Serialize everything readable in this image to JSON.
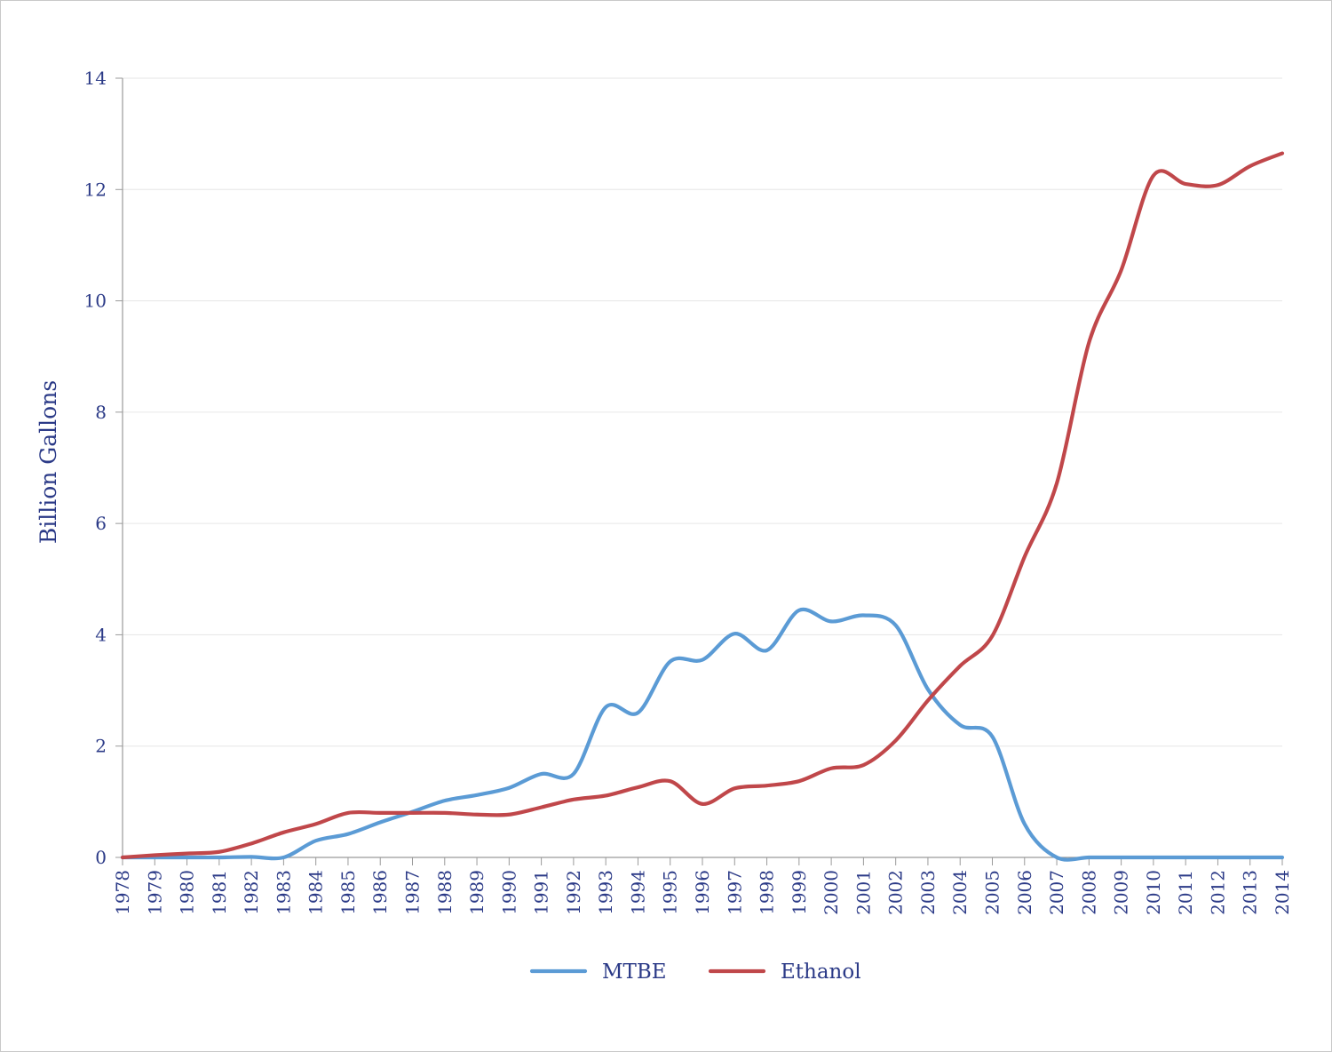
{
  "chart_data": {
    "type": "line",
    "title": "",
    "xlabel": "",
    "ylabel": "Billion Gallons",
    "ylim": [
      0,
      14
    ],
    "yticks": [
      "0",
      "2",
      "4",
      "6",
      "8",
      "10",
      "12",
      "14"
    ],
    "x": [
      1978,
      1979,
      1980,
      1981,
      1982,
      1983,
      1984,
      1985,
      1986,
      1987,
      1988,
      1989,
      1990,
      1991,
      1992,
      1993,
      1994,
      1995,
      1996,
      1997,
      1998,
      1999,
      2000,
      2001,
      2002,
      2003,
      2004,
      2005,
      2006,
      2007,
      2008,
      2009,
      2010,
      2011,
      2012,
      2013,
      2014
    ],
    "xtick_labels": [
      "1978",
      "1979",
      "1980",
      "1981",
      "1982",
      "1983",
      "1984",
      "1985",
      "1986",
      "1987",
      "1988",
      "1989",
      "1990",
      "1991",
      "1992",
      "1993",
      "1994",
      "1995",
      "1996",
      "1997",
      "1998",
      "1999",
      "2000",
      "2001",
      "2002",
      "2003",
      "2004",
      "2005",
      "2006",
      "2007",
      "2008",
      "2009",
      "2010",
      "2011",
      "2012",
      "2013",
      "2014"
    ],
    "series": [
      {
        "name": "MTBE",
        "color": "#5b9bd5",
        "values": [
          0,
          0,
          0,
          0,
          0.01,
          0,
          0.3,
          0.42,
          0.63,
          0.82,
          1.02,
          1.12,
          1.25,
          1.5,
          1.5,
          2.7,
          2.6,
          3.52,
          3.55,
          4.02,
          3.72,
          4.44,
          4.24,
          4.35,
          4.17,
          3.02,
          2.38,
          2.17,
          0.6,
          0,
          0,
          0,
          0,
          0,
          0,
          0,
          0
        ]
      },
      {
        "name": "Ethanol",
        "color": "#c0474a",
        "values": [
          0,
          0.04,
          0.07,
          0.1,
          0.25,
          0.45,
          0.6,
          0.8,
          0.8,
          0.8,
          0.8,
          0.77,
          0.77,
          0.9,
          1.04,
          1.11,
          1.26,
          1.37,
          0.96,
          1.24,
          1.29,
          1.37,
          1.6,
          1.66,
          2.1,
          2.82,
          3.44,
          3.98,
          5.4,
          6.72,
          9.25,
          10.55,
          12.25,
          12.1,
          12.08,
          12.42,
          12.65
        ]
      }
    ],
    "legend_position": "bottom-center",
    "grid": "horizontal"
  }
}
